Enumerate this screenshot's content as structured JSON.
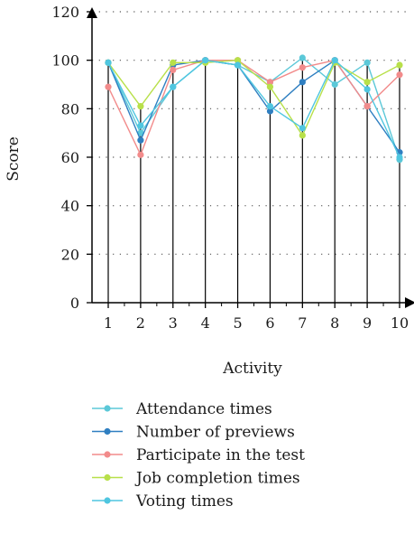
{
  "chart_data": {
    "type": "line",
    "x": [
      1,
      2,
      3,
      4,
      5,
      6,
      7,
      8,
      9,
      10
    ],
    "xlabel": "Activity",
    "ylabel": "Score",
    "ylim": [
      0,
      120
    ],
    "yticks": [
      0,
      20,
      40,
      60,
      80,
      100,
      120
    ],
    "grid": "dotted horizontal",
    "legend_position": "bottom",
    "series": [
      {
        "name": "Attendance times",
        "color": "#5bc8d8",
        "values": [
          99,
          70,
          89,
          100,
          98,
          91,
          101,
          90,
          99,
          59
        ]
      },
      {
        "name": "Number of previews",
        "color": "#2f7fc1",
        "values": [
          99,
          67,
          98,
          100,
          98,
          79,
          91,
          100,
          81,
          62
        ]
      },
      {
        "name": "Participate in the test",
        "color": "#f28b8b",
        "values": [
          89,
          61,
          96,
          100,
          100,
          91,
          97,
          100,
          81,
          94
        ]
      },
      {
        "name": "Job completion times",
        "color": "#b8e04a",
        "values": [
          99,
          81,
          99,
          99,
          100,
          89,
          69,
          99,
          91,
          98
        ]
      },
      {
        "name": "Voting times",
        "color": "#4fc6e0",
        "values": [
          99,
          73,
          89,
          100,
          98,
          81,
          72,
          100,
          88,
          60
        ]
      }
    ]
  }
}
